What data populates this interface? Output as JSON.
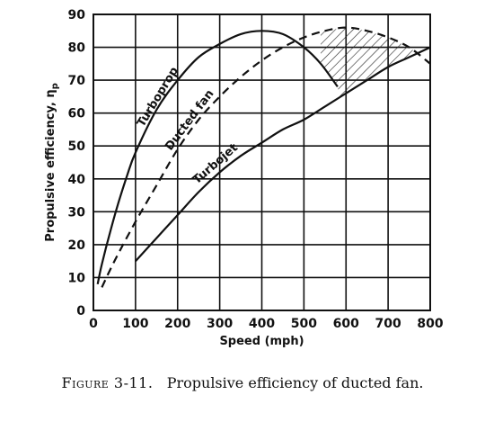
{
  "chart_data": {
    "type": "line",
    "xlabel": "Speed (mph)",
    "ylabel": "Propulsive efficiency, η",
    "ylabel_subscript": "p",
    "xlim": [
      0,
      800
    ],
    "ylim": [
      0,
      90
    ],
    "x_ticks": [
      "0",
      "100",
      "200",
      "300",
      "400",
      "500",
      "600",
      "700",
      "800"
    ],
    "y_ticks": [
      "0",
      "10",
      "20",
      "30",
      "40",
      "50",
      "60",
      "70",
      "80",
      "90"
    ],
    "grid": true,
    "series": [
      {
        "name": "Turboprop",
        "line_style": "solid",
        "points": [
          [
            10,
            8
          ],
          [
            20,
            14
          ],
          [
            40,
            24
          ],
          [
            60,
            33
          ],
          [
            80,
            41
          ],
          [
            100,
            48
          ],
          [
            150,
            61
          ],
          [
            200,
            70
          ],
          [
            250,
            77
          ],
          [
            300,
            81
          ],
          [
            350,
            84
          ],
          [
            400,
            85
          ],
          [
            450,
            84
          ],
          [
            500,
            80
          ],
          [
            540,
            75
          ],
          [
            580,
            68
          ]
        ]
      },
      {
        "name": "Ducted fan",
        "line_style": "dashed",
        "points": [
          [
            20,
            7
          ],
          [
            50,
            15
          ],
          [
            100,
            27
          ],
          [
            150,
            38
          ],
          [
            200,
            49
          ],
          [
            250,
            58
          ],
          [
            300,
            65
          ],
          [
            350,
            71
          ],
          [
            400,
            76
          ],
          [
            450,
            80
          ],
          [
            500,
            83
          ],
          [
            550,
            85
          ],
          [
            600,
            86
          ],
          [
            650,
            85
          ],
          [
            700,
            83
          ],
          [
            750,
            80
          ],
          [
            800,
            75
          ]
        ]
      },
      {
        "name": "Turbojet",
        "line_style": "solid",
        "points": [
          [
            100,
            15
          ],
          [
            150,
            22
          ],
          [
            200,
            29
          ],
          [
            250,
            36
          ],
          [
            300,
            42
          ],
          [
            350,
            47
          ],
          [
            400,
            51
          ],
          [
            450,
            55
          ],
          [
            500,
            58
          ],
          [
            550,
            62
          ],
          [
            600,
            66
          ],
          [
            650,
            70
          ],
          [
            700,
            74
          ],
          [
            750,
            77
          ],
          [
            800,
            80
          ]
        ]
      }
    ],
    "shaded_region": {
      "description_x_range": [
        540,
        800
      ],
      "between": [
        "Ducted fan",
        "Turboprop / Turbojet"
      ],
      "pattern": "hatched"
    }
  },
  "caption": {
    "figure_label": "Figure 3-11.",
    "text": "Propulsive efficiency of ducted fan."
  }
}
